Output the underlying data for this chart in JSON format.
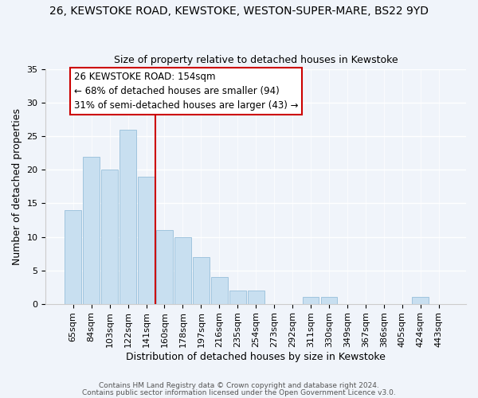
{
  "title1": "26, KEWSTOKE ROAD, KEWSTOKE, WESTON-SUPER-MARE, BS22 9YD",
  "title2": "Size of property relative to detached houses in Kewstoke",
  "xlabel": "Distribution of detached houses by size in Kewstoke",
  "ylabel": "Number of detached properties",
  "bar_labels": [
    "65sqm",
    "84sqm",
    "103sqm",
    "122sqm",
    "141sqm",
    "160sqm",
    "178sqm",
    "197sqm",
    "216sqm",
    "235sqm",
    "254sqm",
    "273sqm",
    "292sqm",
    "311sqm",
    "330sqm",
    "349sqm",
    "367sqm",
    "386sqm",
    "405sqm",
    "424sqm",
    "443sqm"
  ],
  "bar_values": [
    14,
    22,
    20,
    26,
    19,
    11,
    10,
    7,
    4,
    2,
    2,
    0,
    0,
    1,
    1,
    0,
    0,
    0,
    0,
    1,
    0
  ],
  "bar_color": "#c8dff0",
  "bar_edge_color": "#a0c4de",
  "vline_color": "#cc0000",
  "annotation_title": "26 KEWSTOKE ROAD: 154sqm",
  "annotation_line1": "← 68% of detached houses are smaller (94)",
  "annotation_line2": "31% of semi-detached houses are larger (43) →",
  "annotation_box_color": "white",
  "annotation_box_edge": "#cc0000",
  "ylim": [
    0,
    35
  ],
  "yticks": [
    0,
    5,
    10,
    15,
    20,
    25,
    30,
    35
  ],
  "footer1": "Contains HM Land Registry data © Crown copyright and database right 2024.",
  "footer2": "Contains public sector information licensed under the Open Government Licence v3.0.",
  "bg_color": "#f0f4fa"
}
